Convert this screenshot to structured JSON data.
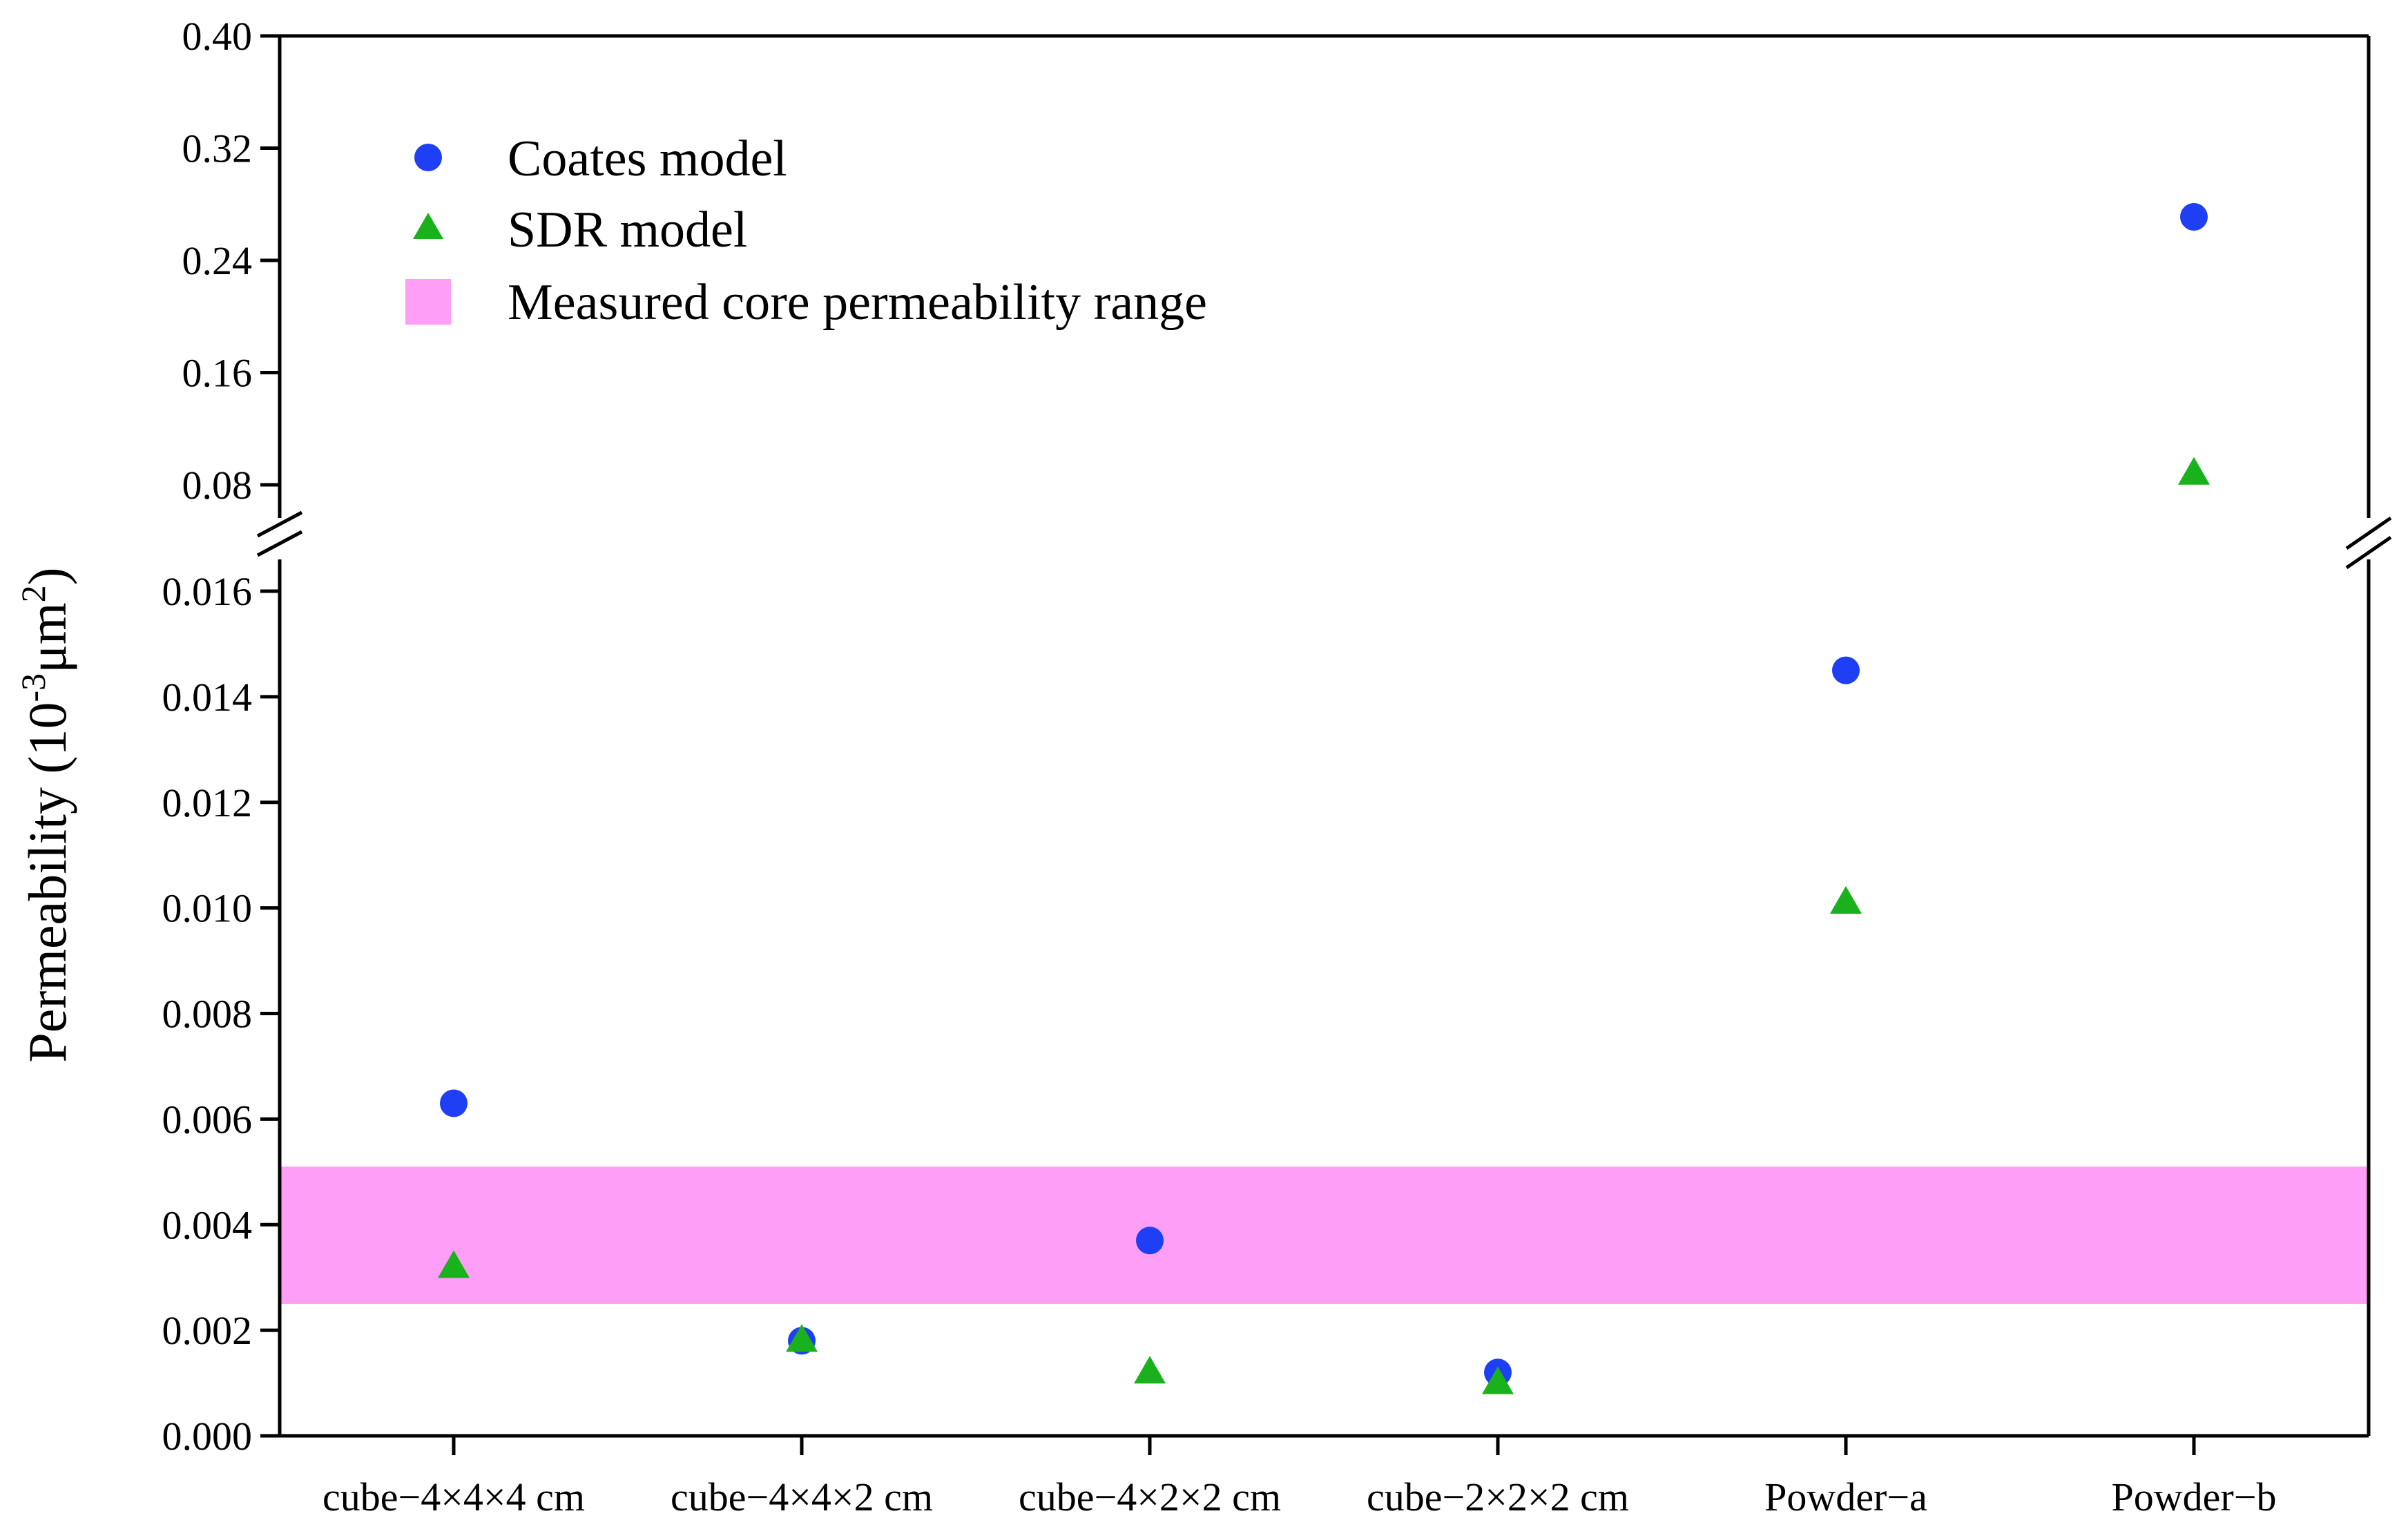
{
  "chart_data": {
    "type": "scatter",
    "categories": [
      "cube−4×4×4 cm",
      "cube−4×4×2 cm",
      "cube−4×2×2 cm",
      "cube−2×2×2 cm",
      "Powder−a",
      "Powder−b"
    ],
    "series": [
      {
        "name": "Coates model",
        "marker": "circle",
        "color": "#1f3ff5",
        "values": [
          0.0063,
          0.0018,
          0.0037,
          0.0012,
          0.0145,
          0.271
        ]
      },
      {
        "name": "SDR model",
        "marker": "triangle",
        "color": "#19b21c",
        "values": [
          0.0032,
          0.0018,
          0.0012,
          0.001,
          0.0101,
          0.088
        ]
      }
    ],
    "band": {
      "name": "Measured core permeability range",
      "color": "#ff9ef7",
      "range": [
        0.0025,
        0.0051
      ]
    },
    "ylabel_main": "Permeability (10",
    "ylabel_sup1": "-3",
    "ylabel_mid": "μm",
    "ylabel_sup2": "2",
    "ylabel_end": ")",
    "axis_break": true,
    "lower_ylim": [
      0,
      0.016
    ],
    "upper_ylim": [
      0.08,
      0.4
    ],
    "lower_ticks": [
      "0.000",
      "0.002",
      "0.004",
      "0.006",
      "0.008",
      "0.010",
      "0.012",
      "0.014",
      "0.016"
    ],
    "upper_ticks": [
      "0.08",
      "0.16",
      "0.24",
      "0.32",
      "0.40"
    ],
    "legend_position": "top-left"
  }
}
